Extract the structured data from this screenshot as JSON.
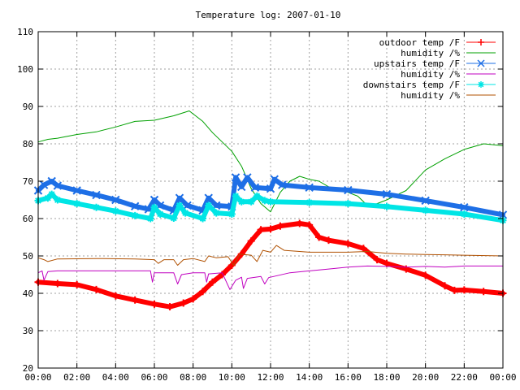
{
  "chart_data": {
    "type": "line",
    "title": "Temperature log: 2007-01-10",
    "xlabel": "",
    "ylabel": "",
    "x_ticks": [
      "00:00",
      "02:00",
      "04:00",
      "06:00",
      "08:00",
      "10:00",
      "12:00",
      "14:00",
      "16:00",
      "18:00",
      "20:00",
      "22:00",
      "00:00"
    ],
    "y_ticks": [
      "20",
      "30",
      "40",
      "50",
      "60",
      "70",
      "80",
      "90",
      "100",
      "110"
    ],
    "xlim": [
      0,
      24
    ],
    "ylim": [
      20,
      110
    ],
    "grid": true,
    "legend_position": "top-right",
    "series": [
      {
        "name": "outdoor temp /F",
        "color": "#ff0000",
        "marker": "plus",
        "style": "thick",
        "points": [
          [
            0,
            43
          ],
          [
            1,
            42.6
          ],
          [
            2,
            42.3
          ],
          [
            3,
            41
          ],
          [
            4,
            39.3
          ],
          [
            5,
            38.2
          ],
          [
            6,
            37.1
          ],
          [
            6.8,
            36.4
          ],
          [
            7.5,
            37.4
          ],
          [
            8,
            38.5
          ],
          [
            8.5,
            40.5
          ],
          [
            9,
            43
          ],
          [
            9.5,
            45
          ],
          [
            10,
            47.5
          ],
          [
            10.5,
            50.5
          ],
          [
            11,
            54
          ],
          [
            11.5,
            57
          ],
          [
            12,
            57.2
          ],
          [
            12.5,
            58
          ],
          [
            13.5,
            58.7
          ],
          [
            14,
            58.3
          ],
          [
            14.5,
            55
          ],
          [
            15,
            54.2
          ],
          [
            16,
            53.3
          ],
          [
            16.8,
            52
          ],
          [
            17.5,
            49
          ],
          [
            18,
            48
          ],
          [
            19,
            46.5
          ],
          [
            20,
            44.8
          ],
          [
            21,
            42
          ],
          [
            21.5,
            40.8
          ],
          [
            22,
            40.9
          ],
          [
            23,
            40.5
          ],
          [
            24,
            40
          ]
        ]
      },
      {
        "name": "humidity /%",
        "color": "#00a000",
        "marker": "none",
        "style": "thin",
        "points": [
          [
            0,
            80.5
          ],
          [
            0.5,
            81.2
          ],
          [
            1,
            81.5
          ],
          [
            2,
            82.5
          ],
          [
            3,
            83.2
          ],
          [
            4,
            84.5
          ],
          [
            5,
            86
          ],
          [
            6,
            86.3
          ],
          [
            7,
            87.5
          ],
          [
            7.8,
            88.8
          ],
          [
            8.5,
            86
          ],
          [
            9,
            83
          ],
          [
            10,
            78
          ],
          [
            10.5,
            74
          ],
          [
            11,
            68
          ],
          [
            11.5,
            64
          ],
          [
            12,
            61.8
          ],
          [
            12.5,
            67
          ],
          [
            13,
            70
          ],
          [
            13.5,
            71.3
          ],
          [
            14,
            70.5
          ],
          [
            14.5,
            70
          ],
          [
            15,
            68.5
          ],
          [
            16,
            67
          ],
          [
            16.5,
            66
          ],
          [
            17,
            63.5
          ],
          [
            17.5,
            64
          ],
          [
            18,
            65
          ],
          [
            19,
            67.5
          ],
          [
            20,
            73
          ],
          [
            21,
            76
          ],
          [
            22,
            78.5
          ],
          [
            23,
            80
          ],
          [
            24,
            79.5
          ]
        ]
      },
      {
        "name": "upstairs temp /F",
        "color": "#1e6fe6",
        "marker": "x",
        "style": "thick",
        "points": [
          [
            0,
            67.5
          ],
          [
            0.3,
            69
          ],
          [
            0.7,
            70
          ],
          [
            1,
            68.8
          ],
          [
            2,
            67.5
          ],
          [
            3,
            66.3
          ],
          [
            4,
            65
          ],
          [
            5,
            63.3
          ],
          [
            5.7,
            62.5
          ],
          [
            6,
            65
          ],
          [
            6.3,
            63.5
          ],
          [
            7,
            62.2
          ],
          [
            7.3,
            65.5
          ],
          [
            7.7,
            63.5
          ],
          [
            8.5,
            62.2
          ],
          [
            8.8,
            65.5
          ],
          [
            9.2,
            63.5
          ],
          [
            10,
            63.2
          ],
          [
            10.2,
            71
          ],
          [
            10.5,
            68.5
          ],
          [
            10.8,
            71
          ],
          [
            11.2,
            68.3
          ],
          [
            12,
            68
          ],
          [
            12.2,
            70.5
          ],
          [
            12.6,
            69
          ],
          [
            14,
            68.3
          ],
          [
            16,
            67.6
          ],
          [
            18,
            66.5
          ],
          [
            20,
            64.8
          ],
          [
            22,
            63
          ],
          [
            24,
            61
          ]
        ]
      },
      {
        "name": "humidity /%",
        "color": "#c000c0",
        "marker": "none",
        "style": "thin",
        "points": [
          [
            0,
            45.5
          ],
          [
            0.2,
            46
          ],
          [
            0.3,
            43.5
          ],
          [
            0.5,
            45.8
          ],
          [
            1,
            46
          ],
          [
            3,
            46
          ],
          [
            5,
            46
          ],
          [
            5.8,
            46
          ],
          [
            5.9,
            43
          ],
          [
            6,
            45.5
          ],
          [
            7,
            45.5
          ],
          [
            7.2,
            42.5
          ],
          [
            7.4,
            45
          ],
          [
            8,
            45.5
          ],
          [
            8.6,
            45.5
          ],
          [
            8.7,
            43
          ],
          [
            8.8,
            45.2
          ],
          [
            9.5,
            45.5
          ],
          [
            9.9,
            41
          ],
          [
            10.2,
            43.5
          ],
          [
            10.5,
            44.3
          ],
          [
            10.6,
            41.3
          ],
          [
            10.8,
            44
          ],
          [
            11.5,
            44.5
          ],
          [
            11.7,
            42.5
          ],
          [
            11.9,
            44.2
          ],
          [
            13,
            45.5
          ],
          [
            14,
            46
          ],
          [
            15,
            46.5
          ],
          [
            16,
            47
          ],
          [
            17,
            47.3
          ],
          [
            18,
            47.2
          ],
          [
            19,
            47
          ],
          [
            20,
            47.2
          ],
          [
            21,
            47
          ],
          [
            22,
            47.3
          ],
          [
            24,
            47.3
          ]
        ]
      },
      {
        "name": "downstairs temp /F",
        "color": "#00e5e5",
        "marker": "star",
        "style": "thick",
        "points": [
          [
            0,
            64.8
          ],
          [
            0.5,
            65.5
          ],
          [
            0.7,
            66.5
          ],
          [
            1,
            65
          ],
          [
            2,
            64
          ],
          [
            3,
            63
          ],
          [
            4,
            62
          ],
          [
            5,
            60.8
          ],
          [
            5.8,
            60
          ],
          [
            6,
            63
          ],
          [
            6.3,
            61.2
          ],
          [
            7,
            60.1
          ],
          [
            7.3,
            63.5
          ],
          [
            7.6,
            61.5
          ],
          [
            8.5,
            60
          ],
          [
            8.8,
            63.5
          ],
          [
            9.2,
            61.5
          ],
          [
            10,
            61.2
          ],
          [
            10.2,
            66
          ],
          [
            10.5,
            64.5
          ],
          [
            11,
            64.5
          ],
          [
            11.3,
            66
          ],
          [
            11.7,
            64.8
          ],
          [
            12,
            64.5
          ],
          [
            14,
            64.3
          ],
          [
            16,
            64
          ],
          [
            18,
            63.2
          ],
          [
            20,
            62.2
          ],
          [
            22,
            61.2
          ],
          [
            24,
            59.5
          ]
        ]
      },
      {
        "name": "humidity /%",
        "color": "#b05000",
        "marker": "none",
        "style": "thin",
        "points": [
          [
            0,
            49.5
          ],
          [
            0.3,
            49
          ],
          [
            0.5,
            48.5
          ],
          [
            1,
            49.2
          ],
          [
            3,
            49.3
          ],
          [
            5,
            49.2
          ],
          [
            6,
            49
          ],
          [
            6.2,
            48
          ],
          [
            6.5,
            49
          ],
          [
            7,
            49
          ],
          [
            7.2,
            47.5
          ],
          [
            7.5,
            49
          ],
          [
            8,
            49.3
          ],
          [
            8.6,
            48.5
          ],
          [
            8.8,
            50
          ],
          [
            9.2,
            49.5
          ],
          [
            9.8,
            49.8
          ],
          [
            10.1,
            47.5
          ],
          [
            10.4,
            50.5
          ],
          [
            11,
            50.2
          ],
          [
            11.3,
            48.5
          ],
          [
            11.6,
            51.5
          ],
          [
            12,
            51
          ],
          [
            12.3,
            52.8
          ],
          [
            12.7,
            51.5
          ],
          [
            14,
            51
          ],
          [
            16,
            51
          ],
          [
            17,
            51.2
          ],
          [
            18,
            50.7
          ],
          [
            19,
            50.5
          ],
          [
            20,
            50.4
          ],
          [
            21,
            50.3
          ],
          [
            22,
            50.2
          ],
          [
            24,
            50
          ]
        ]
      }
    ]
  }
}
